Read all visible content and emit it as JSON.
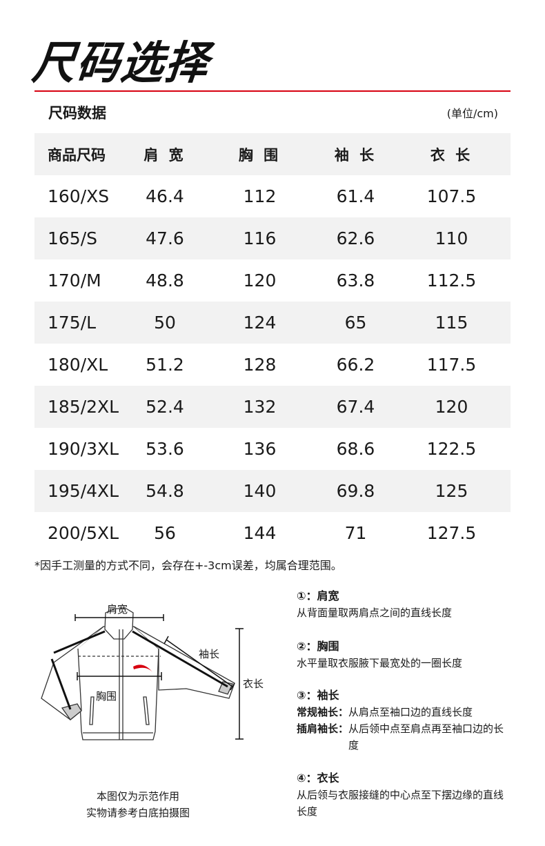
{
  "title": "尺码选择",
  "subtitle": "尺码数据",
  "unit": "(单位/cm)",
  "accent_color": "#d7000f",
  "table": {
    "headers": [
      "商品尺码",
      "肩 宽",
      "胸 围",
      "袖 长",
      "衣 长"
    ],
    "rows": [
      [
        "160/XS",
        "46.4",
        "112",
        "61.4",
        "107.5"
      ],
      [
        "165/S",
        "47.6",
        "116",
        "62.6",
        "110"
      ],
      [
        "170/M",
        "48.8",
        "120",
        "63.8",
        "112.5"
      ],
      [
        "175/L",
        "50",
        "124",
        "65",
        "115"
      ],
      [
        "180/XL",
        "51.2",
        "128",
        "66.2",
        "117.5"
      ],
      [
        "185/2XL",
        "52.4",
        "132",
        "67.4",
        "120"
      ],
      [
        "190/3XL",
        "53.6",
        "136",
        "68.6",
        "122.5"
      ],
      [
        "195/4XL",
        "54.8",
        "140",
        "69.8",
        "125"
      ],
      [
        "200/5XL",
        "56",
        "144",
        "71",
        "127.5"
      ]
    ]
  },
  "note": "*因手工测量的方式不同，会存在+-3cm误差，均属合理范围。",
  "diagram": {
    "labels": {
      "shoulder": "肩宽",
      "chest": "胸围",
      "sleeve": "袖长",
      "length": "衣长"
    },
    "caption_line1": "本图仅为示范作用",
    "caption_line2": "实物请参考白底拍摄图"
  },
  "definitions": [
    {
      "heading": "①：肩宽",
      "text": "从背面量取两肩点之间的直线长度"
    },
    {
      "heading": "②：胸围",
      "text": "水平量取衣服腋下最宽处的一圈长度"
    },
    {
      "heading": "③：袖长",
      "sub": [
        {
          "label": "常规袖长：",
          "text": "从肩点至袖口边的直线长度"
        },
        {
          "label": "插肩袖长：",
          "text": "从后领中点至肩点再至袖口边的长度"
        }
      ]
    },
    {
      "heading": "④：衣长",
      "text": "从后领与衣服接缝的中心点至下摆边缘的直线长度"
    }
  ]
}
